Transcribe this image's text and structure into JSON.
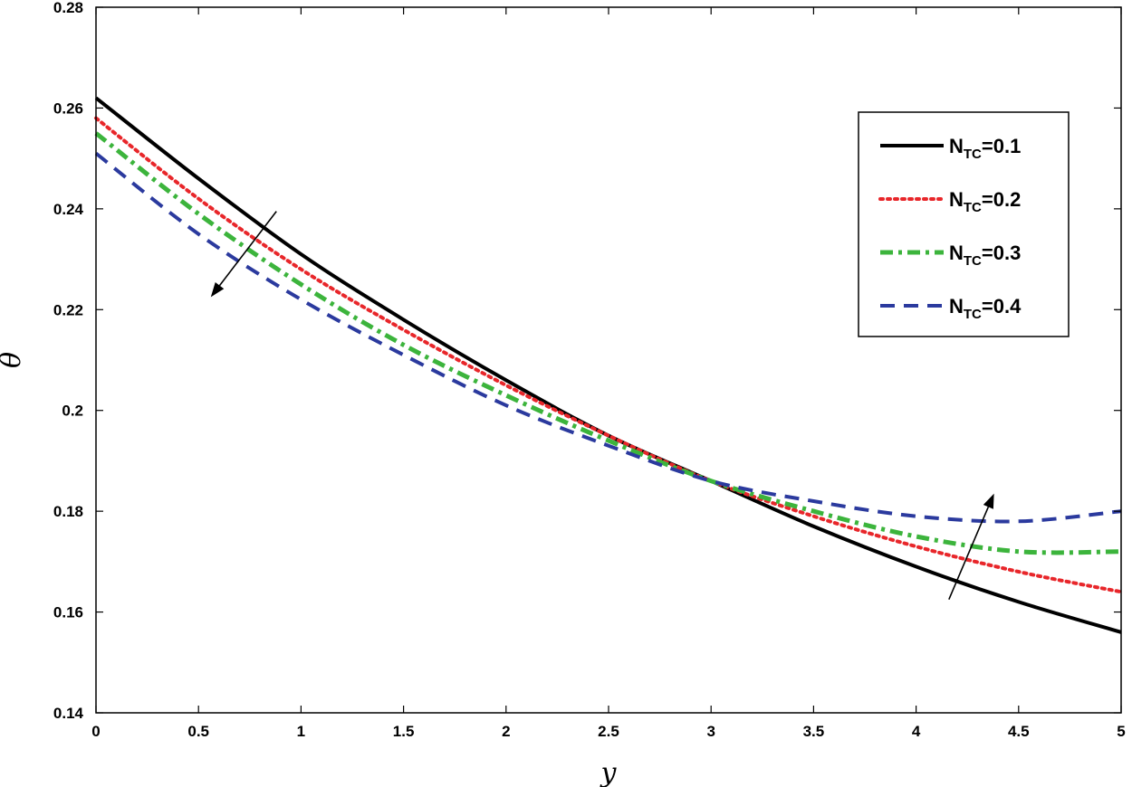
{
  "chart_data": {
    "type": "line",
    "title": "",
    "xlabel": "y",
    "ylabel": "θ",
    "xlim": [
      0,
      5
    ],
    "ylim": [
      0.14,
      0.28
    ],
    "xticks": [
      "0",
      "0.5",
      "1",
      "1.5",
      "2",
      "2.5",
      "3",
      "3.5",
      "4",
      "4.5",
      "5"
    ],
    "yticks": [
      "0.14",
      "0.16",
      "0.18",
      "0.2",
      "0.22",
      "0.24",
      "0.26",
      "0.28"
    ],
    "grid": false,
    "legend_position": "top-right",
    "x": [
      0,
      0.5,
      1,
      1.5,
      2,
      2.5,
      3,
      3.5,
      4,
      4.5,
      5
    ],
    "series": [
      {
        "name_main": "N",
        "name_sub": "TC",
        "name_value": "=0.1",
        "color": "#000000",
        "dash": "solid",
        "values": [
          0.262,
          0.246,
          0.231,
          0.218,
          0.206,
          0.195,
          0.186,
          0.177,
          0.169,
          0.162,
          0.156
        ]
      },
      {
        "name_main": "N",
        "name_sub": "TC",
        "name_value": "=0.2",
        "color": "#e8262a",
        "dash": "dotted",
        "values": [
          0.258,
          0.242,
          0.228,
          0.216,
          0.205,
          0.195,
          0.186,
          0.179,
          0.173,
          0.168,
          0.164
        ]
      },
      {
        "name_main": "N",
        "name_sub": "TC",
        "name_value": "=0.3",
        "color": "#3cb43c",
        "dash": "dashdot",
        "values": [
          0.255,
          0.239,
          0.225,
          0.213,
          0.203,
          0.194,
          0.186,
          0.18,
          0.175,
          0.172,
          0.172
        ]
      },
      {
        "name_main": "N",
        "name_sub": "TC",
        "name_value": "=0.4",
        "color": "#2b3a9e",
        "dash": "dashed",
        "values": [
          0.251,
          0.235,
          0.222,
          0.211,
          0.201,
          0.193,
          0.186,
          0.182,
          0.179,
          0.178,
          0.18
        ]
      }
    ],
    "annotations": [
      {
        "type": "arrow",
        "from": [
          0.88,
          0.2395
        ],
        "to": [
          0.56,
          0.2225
        ]
      },
      {
        "type": "arrow",
        "from": [
          4.16,
          0.1625
        ],
        "to": [
          4.38,
          0.1835
        ]
      }
    ]
  }
}
